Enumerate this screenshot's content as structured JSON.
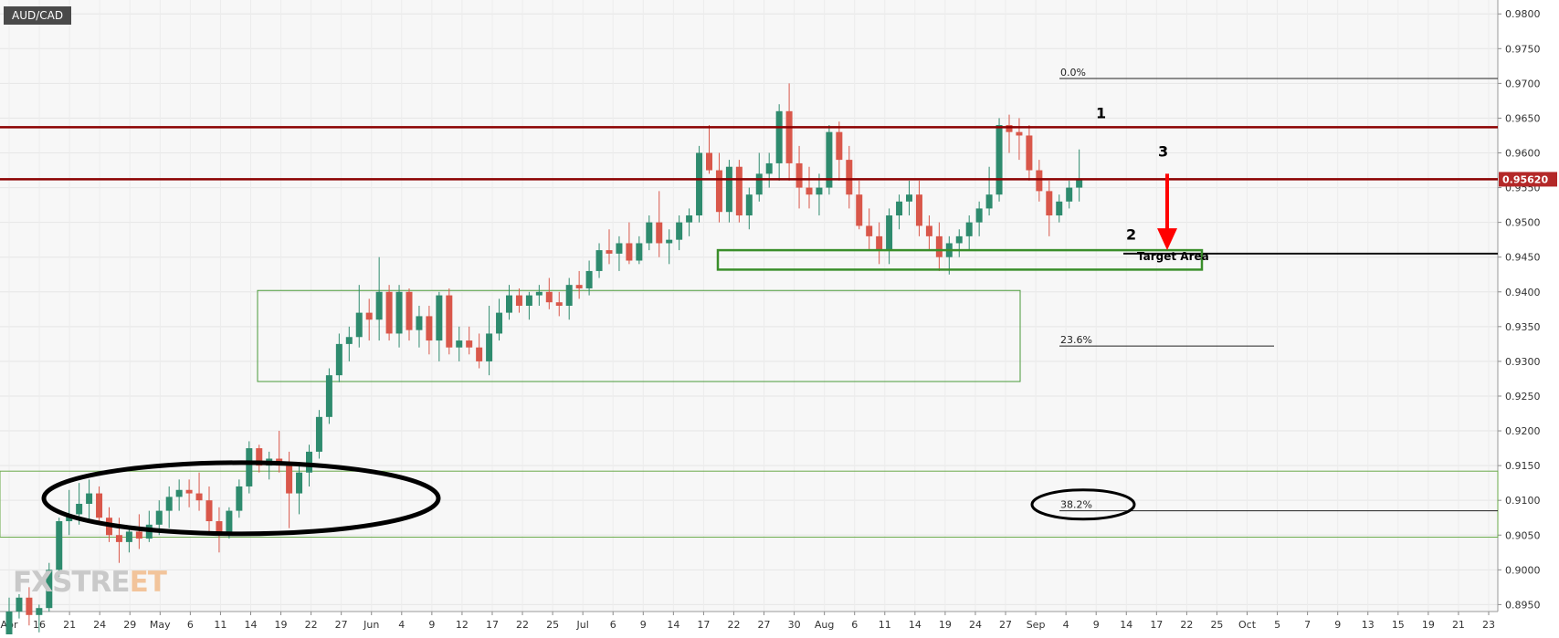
{
  "header": {
    "symbol": "AUD/CAD"
  },
  "watermark": {
    "logo_text_main": "FXSTRE",
    "logo_text_accent": "ET"
  },
  "chart_data": {
    "type": "candlestick",
    "symbol": "AUD/CAD",
    "timeframe": "daily",
    "ylim": [
      0.894,
      0.982
    ],
    "y_ticks": [
      "0.9800",
      "0.9750",
      "0.9700",
      "0.9650",
      "0.9600",
      "0.9550",
      "0.9500",
      "0.9450",
      "0.9400",
      "0.9350",
      "0.9300",
      "0.9250",
      "0.9200",
      "0.9150",
      "0.9100",
      "0.9050",
      "0.9000",
      "0.8950"
    ],
    "x_ticks": [
      "Apr",
      "16",
      "21",
      "24",
      "29",
      "May",
      "6",
      "11",
      "14",
      "19",
      "22",
      "27",
      "Jun",
      "4",
      "9",
      "12",
      "17",
      "22",
      "25",
      "Jul",
      "6",
      "9",
      "14",
      "17",
      "22",
      "27",
      "30",
      "Aug",
      "6",
      "11",
      "14",
      "19",
      "24",
      "27",
      "Sep",
      "4",
      "9",
      "14",
      "17",
      "22",
      "25",
      "Oct",
      "5",
      "7",
      "9",
      "13",
      "15",
      "19",
      "21",
      "23"
    ],
    "current_price_label": "0.95620",
    "current_price": 0.9562,
    "colors": {
      "up": "#2e8b6e",
      "down": "#d9574a",
      "resistance": "#8b0000",
      "zone": "#3a8e2a",
      "arrow": "#ff0000",
      "price_tag": "#b42828"
    },
    "candles": [
      [
        0.8905,
        0.896,
        0.889,
        0.894
      ],
      [
        0.894,
        0.8965,
        0.893,
        0.896
      ],
      [
        0.896,
        0.8975,
        0.892,
        0.8935
      ],
      [
        0.8935,
        0.895,
        0.891,
        0.8945
      ],
      [
        0.8945,
        0.901,
        0.894,
        0.9
      ],
      [
        0.9,
        0.9075,
        0.899,
        0.907
      ],
      [
        0.907,
        0.9115,
        0.905,
        0.908
      ],
      [
        0.908,
        0.9125,
        0.9065,
        0.9095
      ],
      [
        0.9095,
        0.913,
        0.907,
        0.911
      ],
      [
        0.911,
        0.912,
        0.907,
        0.9075
      ],
      [
        0.9075,
        0.909,
        0.904,
        0.905
      ],
      [
        0.905,
        0.9075,
        0.901,
        0.904
      ],
      [
        0.904,
        0.906,
        0.9025,
        0.9055
      ],
      [
        0.9055,
        0.908,
        0.903,
        0.9045
      ],
      [
        0.9045,
        0.9085,
        0.904,
        0.9065
      ],
      [
        0.9065,
        0.91,
        0.905,
        0.9085
      ],
      [
        0.9085,
        0.912,
        0.906,
        0.9105
      ],
      [
        0.9105,
        0.913,
        0.9085,
        0.9115
      ],
      [
        0.9115,
        0.913,
        0.909,
        0.911
      ],
      [
        0.911,
        0.914,
        0.9085,
        0.91
      ],
      [
        0.91,
        0.912,
        0.905,
        0.907
      ],
      [
        0.907,
        0.909,
        0.9025,
        0.905
      ],
      [
        0.905,
        0.909,
        0.9045,
        0.9085
      ],
      [
        0.9085,
        0.913,
        0.9075,
        0.912
      ],
      [
        0.912,
        0.9185,
        0.911,
        0.9175
      ],
      [
        0.9175,
        0.918,
        0.914,
        0.915
      ],
      [
        0.915,
        0.917,
        0.913,
        0.916
      ],
      [
        0.916,
        0.92,
        0.914,
        0.915
      ],
      [
        0.915,
        0.917,
        0.906,
        0.911
      ],
      [
        0.911,
        0.915,
        0.908,
        0.914
      ],
      [
        0.914,
        0.918,
        0.912,
        0.917
      ],
      [
        0.917,
        0.923,
        0.916,
        0.922
      ],
      [
        0.922,
        0.929,
        0.921,
        0.928
      ],
      [
        0.928,
        0.934,
        0.927,
        0.9325
      ],
      [
        0.9325,
        0.935,
        0.93,
        0.9335
      ],
      [
        0.9335,
        0.941,
        0.932,
        0.937
      ],
      [
        0.937,
        0.939,
        0.933,
        0.936
      ],
      [
        0.936,
        0.945,
        0.933,
        0.94
      ],
      [
        0.94,
        0.941,
        0.933,
        0.934
      ],
      [
        0.934,
        0.941,
        0.932,
        0.94
      ],
      [
        0.94,
        0.9405,
        0.933,
        0.9345
      ],
      [
        0.9345,
        0.938,
        0.932,
        0.9365
      ],
      [
        0.9365,
        0.938,
        0.931,
        0.933
      ],
      [
        0.933,
        0.94,
        0.93,
        0.9395
      ],
      [
        0.9395,
        0.9405,
        0.931,
        0.932
      ],
      [
        0.932,
        0.935,
        0.93,
        0.933
      ],
      [
        0.933,
        0.935,
        0.931,
        0.932
      ],
      [
        0.932,
        0.934,
        0.929,
        0.93
      ],
      [
        0.93,
        0.938,
        0.928,
        0.934
      ],
      [
        0.934,
        0.939,
        0.933,
        0.937
      ],
      [
        0.937,
        0.941,
        0.936,
        0.9395
      ],
      [
        0.9395,
        0.9405,
        0.937,
        0.938
      ],
      [
        0.938,
        0.94,
        0.936,
        0.9395
      ],
      [
        0.9395,
        0.941,
        0.938,
        0.94
      ],
      [
        0.94,
        0.942,
        0.9375,
        0.9385
      ],
      [
        0.9385,
        0.94,
        0.9365,
        0.938
      ],
      [
        0.938,
        0.942,
        0.936,
        0.941
      ],
      [
        0.941,
        0.943,
        0.939,
        0.9405
      ],
      [
        0.9405,
        0.9445,
        0.9395,
        0.943
      ],
      [
        0.943,
        0.947,
        0.942,
        0.946
      ],
      [
        0.946,
        0.949,
        0.944,
        0.9455
      ],
      [
        0.9455,
        0.948,
        0.943,
        0.947
      ],
      [
        0.947,
        0.95,
        0.944,
        0.9445
      ],
      [
        0.9445,
        0.948,
        0.944,
        0.947
      ],
      [
        0.947,
        0.951,
        0.946,
        0.95
      ],
      [
        0.95,
        0.9545,
        0.945,
        0.947
      ],
      [
        0.947,
        0.949,
        0.944,
        0.9475
      ],
      [
        0.9475,
        0.951,
        0.946,
        0.95
      ],
      [
        0.95,
        0.952,
        0.948,
        0.951
      ],
      [
        0.951,
        0.961,
        0.95,
        0.96
      ],
      [
        0.96,
        0.964,
        0.957,
        0.9575
      ],
      [
        0.9575,
        0.96,
        0.95,
        0.9515
      ],
      [
        0.9515,
        0.959,
        0.95,
        0.958
      ],
      [
        0.958,
        0.959,
        0.95,
        0.951
      ],
      [
        0.951,
        0.955,
        0.949,
        0.954
      ],
      [
        0.954,
        0.96,
        0.953,
        0.957
      ],
      [
        0.957,
        0.96,
        0.955,
        0.9585
      ],
      [
        0.9585,
        0.967,
        0.956,
        0.966
      ],
      [
        0.966,
        0.97,
        0.956,
        0.9585
      ],
      [
        0.9585,
        0.961,
        0.952,
        0.955
      ],
      [
        0.955,
        0.958,
        0.952,
        0.954
      ],
      [
        0.954,
        0.957,
        0.951,
        0.955
      ],
      [
        0.955,
        0.964,
        0.954,
        0.963
      ],
      [
        0.963,
        0.9645,
        0.956,
        0.959
      ],
      [
        0.959,
        0.961,
        0.952,
        0.954
      ],
      [
        0.954,
        0.956,
        0.949,
        0.9495
      ],
      [
        0.9495,
        0.952,
        0.946,
        0.948
      ],
      [
        0.948,
        0.95,
        0.944,
        0.946
      ],
      [
        0.946,
        0.952,
        0.944,
        0.951
      ],
      [
        0.951,
        0.954,
        0.949,
        0.953
      ],
      [
        0.953,
        0.956,
        0.951,
        0.954
      ],
      [
        0.954,
        0.956,
        0.948,
        0.9495
      ],
      [
        0.9495,
        0.951,
        0.946,
        0.948
      ],
      [
        0.948,
        0.95,
        0.943,
        0.945
      ],
      [
        0.945,
        0.948,
        0.9425,
        0.947
      ],
      [
        0.947,
        0.949,
        0.945,
        0.948
      ],
      [
        0.948,
        0.951,
        0.946,
        0.95
      ],
      [
        0.95,
        0.953,
        0.948,
        0.952
      ],
      [
        0.952,
        0.958,
        0.951,
        0.954
      ],
      [
        0.954,
        0.965,
        0.953,
        0.964
      ],
      [
        0.964,
        0.9655,
        0.96,
        0.963
      ],
      [
        0.963,
        0.965,
        0.959,
        0.9625
      ],
      [
        0.9625,
        0.964,
        0.956,
        0.9575
      ],
      [
        0.9575,
        0.959,
        0.953,
        0.9545
      ],
      [
        0.9545,
        0.956,
        0.948,
        0.951
      ],
      [
        0.951,
        0.954,
        0.95,
        0.953
      ],
      [
        0.953,
        0.956,
        0.952,
        0.955
      ],
      [
        0.955,
        0.9605,
        0.953,
        0.9562
      ]
    ],
    "horizontal_lines": [
      {
        "name": "resistance-upper",
        "price": 0.9637,
        "style": "solid"
      },
      {
        "name": "resistance-lower",
        "price": 0.9562,
        "style": "solid"
      },
      {
        "name": "target-level",
        "price": 0.9455,
        "style": "solid"
      }
    ],
    "fibonacci": [
      {
        "label": "0.0%",
        "price": 0.9707
      },
      {
        "label": "23.6%",
        "price": 0.9322
      },
      {
        "label": "38.2%",
        "price": 0.9085
      }
    ],
    "annotations": [
      {
        "text": "1",
        "price": 0.965
      },
      {
        "text": "2",
        "price": 0.9475
      },
      {
        "text": "3",
        "price": 0.9595
      },
      {
        "text": "Target Area",
        "price": 0.9447
      }
    ],
    "zones": [
      {
        "name": "target-area-box",
        "top": 0.946,
        "bottom": 0.9432
      },
      {
        "name": "range-box",
        "top": 0.9402,
        "bottom": 0.9271
      },
      {
        "name": "support-band",
        "top": 0.9142,
        "bottom": 0.9047
      }
    ],
    "grid": true
  }
}
